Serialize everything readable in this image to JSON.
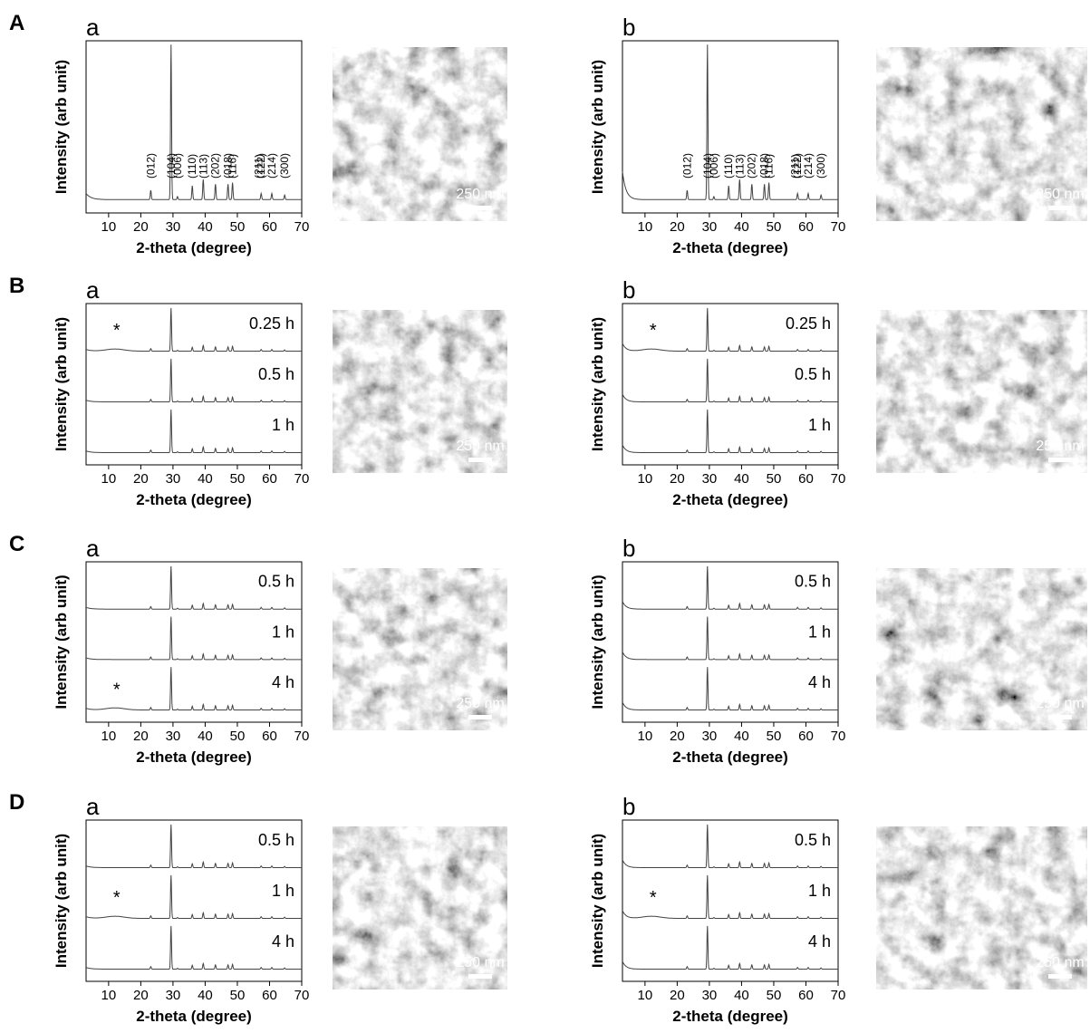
{
  "rows": [
    {
      "label": "A",
      "panels": [
        {
          "label": "a",
          "y_label": "Intensity (arb unit)",
          "x_label": "2-theta (degree)",
          "xlim": [
            3,
            70
          ],
          "xticks": [
            10,
            20,
            30,
            40,
            50,
            60,
            70
          ],
          "hkl": [
            {
              "label": "(012)",
              "x": 23.1
            },
            {
              "label": "(104)",
              "x": 29.4
            },
            {
              "label": "(006)",
              "x": 31.4
            },
            {
              "label": "(110)",
              "x": 35.9
            },
            {
              "label": "(113)",
              "x": 39.4
            },
            {
              "label": "(202)",
              "x": 43.1
            },
            {
              "label": "(018)",
              "x": 47.1
            },
            {
              "label": "(116)",
              "x": 48.5
            },
            {
              "label": "(211)",
              "x": 56.6
            },
            {
              "label": "(122)",
              "x": 57.4
            },
            {
              "label": "(214)",
              "x": 60.7
            },
            {
              "label": "(300)",
              "x": 64.7
            }
          ],
          "scale_bar": "250 nm"
        },
        {
          "label": "b",
          "y_label": "Intensity (arb unit)",
          "x_label": "2-theta (degree)",
          "xlim": [
            3,
            70
          ],
          "xticks": [
            10,
            20,
            30,
            40,
            50,
            60,
            70
          ],
          "hkl": [
            {
              "label": "(012)",
              "x": 23.1
            },
            {
              "label": "(104)",
              "x": 29.4
            },
            {
              "label": "(006)",
              "x": 31.4
            },
            {
              "label": "(110)",
              "x": 35.9
            },
            {
              "label": "(113)",
              "x": 39.4
            },
            {
              "label": "(202)",
              "x": 43.1
            },
            {
              "label": "(018)",
              "x": 47.1
            },
            {
              "label": "(116)",
              "x": 48.5
            },
            {
              "label": "(211)",
              "x": 56.6
            },
            {
              "label": "(122)",
              "x": 57.4
            },
            {
              "label": "(214)",
              "x": 60.7
            },
            {
              "label": "(300)",
              "x": 64.7
            }
          ],
          "scale_bar": "250 nm"
        }
      ]
    },
    {
      "label": "B",
      "panels": [
        {
          "label": "a",
          "y_label": "Intensity (arb unit)",
          "x_label": "2-theta (degree)",
          "xlim": [
            3,
            70
          ],
          "xticks": [
            10,
            20,
            30,
            40,
            50,
            60,
            70
          ],
          "traces": [
            {
              "label": "0.25 h",
              "star": "*"
            },
            {
              "label": "0.5 h"
            },
            {
              "label": "1 h"
            }
          ],
          "scale_bar": "250 nm"
        },
        {
          "label": "b",
          "y_label": "Intensity (arb unit)",
          "x_label": "2-theta (degree)",
          "xlim": [
            3,
            70
          ],
          "xticks": [
            10,
            20,
            30,
            40,
            50,
            60,
            70
          ],
          "traces": [
            {
              "label": "0.25 h",
              "star": "*"
            },
            {
              "label": "0.5 h"
            },
            {
              "label": "1 h"
            }
          ],
          "scale_bar": "250 nm"
        }
      ]
    },
    {
      "label": "C",
      "panels": [
        {
          "label": "a",
          "y_label": "Intensity (arb unit)",
          "x_label": "2-theta (degree)",
          "xlim": [
            3,
            70
          ],
          "xticks": [
            10,
            20,
            30,
            40,
            50,
            60,
            70
          ],
          "traces": [
            {
              "label": "0.5 h"
            },
            {
              "label": "1 h"
            },
            {
              "label": "4 h",
              "star": "*"
            }
          ],
          "scale_bar": "250 nm"
        },
        {
          "label": "b",
          "y_label": "Intensity (arb unit)",
          "x_label": "2-theta (degree)",
          "xlim": [
            3,
            70
          ],
          "xticks": [
            10,
            20,
            30,
            40,
            50,
            60,
            70
          ],
          "traces": [
            {
              "label": "0.5 h"
            },
            {
              "label": "1 h"
            },
            {
              "label": "4 h"
            }
          ],
          "scale_bar": "250 nm"
        }
      ]
    },
    {
      "label": "D",
      "panels": [
        {
          "label": "a",
          "y_label": "Intensity (arb unit)",
          "x_label": "2-theta (degree)",
          "xlim": [
            3,
            70
          ],
          "xticks": [
            10,
            20,
            30,
            40,
            50,
            60,
            70
          ],
          "traces": [
            {
              "label": "0.5 h"
            },
            {
              "label": "1 h",
              "star": "*"
            },
            {
              "label": "4 h"
            }
          ],
          "scale_bar": "250 nm"
        },
        {
          "label": "b",
          "y_label": "Intensity (arb unit)",
          "x_label": "2-theta (degree)",
          "xlim": [
            3,
            70
          ],
          "xticks": [
            10,
            20,
            30,
            40,
            50,
            60,
            70
          ],
          "traces": [
            {
              "label": "0.5 h"
            },
            {
              "label": "1 h",
              "star": "*"
            },
            {
              "label": "4 h"
            }
          ],
          "scale_bar": "250 nm"
        }
      ]
    }
  ],
  "peaks": {
    "x": [
      23.1,
      29.4,
      31.4,
      36.0,
      39.4,
      43.2,
      47.1,
      48.5,
      57.4,
      60.7,
      64.7
    ],
    "h": [
      0.06,
      1,
      0.02,
      0.09,
      0.13,
      0.1,
      0.1,
      0.11,
      0.04,
      0.04,
      0.03
    ]
  }
}
